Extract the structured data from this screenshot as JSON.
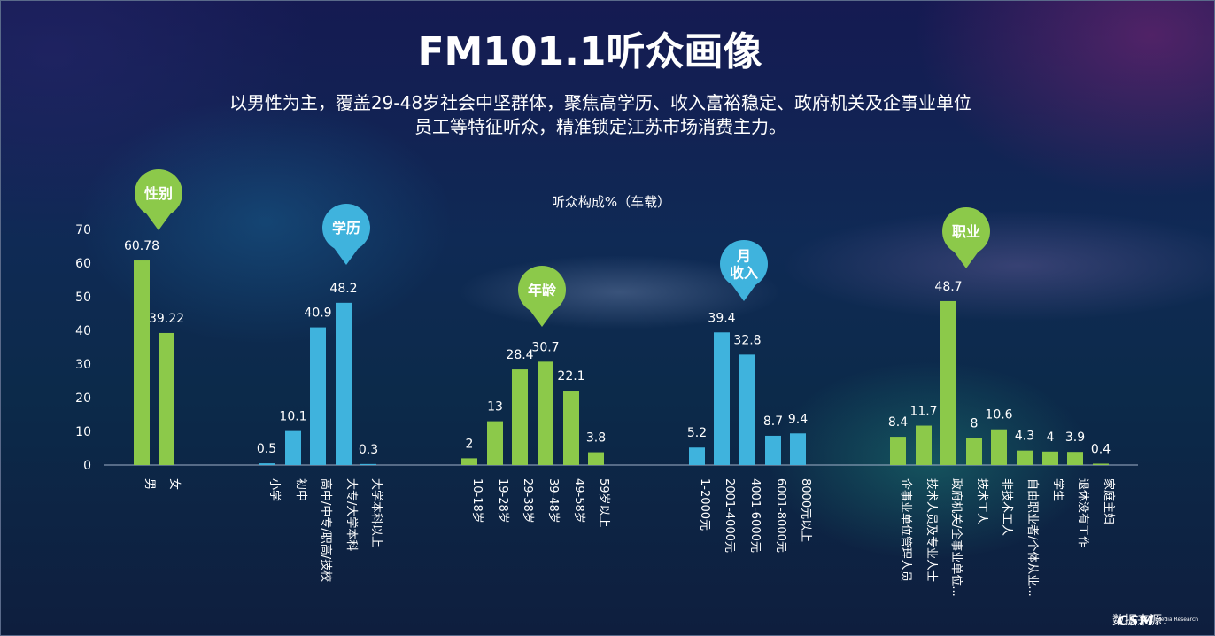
{
  "title": "FM101.1听众画像",
  "subtitle_line1": "以男性为主，覆盖29-48岁社会中坚群体，聚焦高学历、收入富裕稳定、政府机关及企事业单位",
  "subtitle_line2": "员工等特征听众，精准锁定江苏市场消费主力。",
  "source_label": "数据来源：",
  "logo_text": "CSM",
  "logo_subtext": "Media Research",
  "colors": {
    "green": "#8cc94a",
    "blue": "#3fb3dd",
    "axis": "#9fb0c8"
  },
  "chart_data": {
    "type": "bar",
    "title": "听众构成%（车载）",
    "ylim": [
      0,
      70
    ],
    "yticks": [
      0,
      10,
      20,
      30,
      40,
      50,
      60,
      70
    ],
    "grid": false,
    "groups": [
      {
        "name": "性别",
        "color": "green",
        "categories": [
          "男",
          "女"
        ],
        "values": [
          60.78,
          39.22
        ]
      },
      {
        "name": "学历",
        "color": "blue",
        "categories": [
          "小学",
          "初中",
          "高中/中专/职高/技校",
          "大专/大学本科",
          "大学本科以上"
        ],
        "values": [
          0.5,
          10.1,
          40.9,
          48.2,
          0.3
        ]
      },
      {
        "name": "年龄",
        "color": "green",
        "categories": [
          "10-18岁",
          "19-28岁",
          "29-38岁",
          "39-48岁",
          "49-58岁",
          "59岁以上"
        ],
        "values": [
          2,
          13,
          28.4,
          30.7,
          22.1,
          3.8
        ]
      },
      {
        "name": "月收入",
        "name_lines": [
          "月",
          "收入"
        ],
        "color": "blue",
        "categories": [
          "1-2000元",
          "2001-4000元",
          "4001-6000元",
          "6001-8000元",
          "8000元以上"
        ],
        "values": [
          5.2,
          39.4,
          32.8,
          8.7,
          9.4
        ]
      },
      {
        "name": "职业",
        "color": "green",
        "categories": [
          "企事业单位管理人员",
          "技术人员及专业人士",
          "政府机关/企事业单位...",
          "技术工人",
          "非技术工人",
          "自由职业者/个体从业...",
          "学生",
          "退休没有工作",
          "家庭主妇"
        ],
        "values": [
          8.4,
          11.7,
          48.7,
          8,
          10.6,
          4.3,
          4,
          3.9,
          0.4
        ]
      }
    ]
  }
}
